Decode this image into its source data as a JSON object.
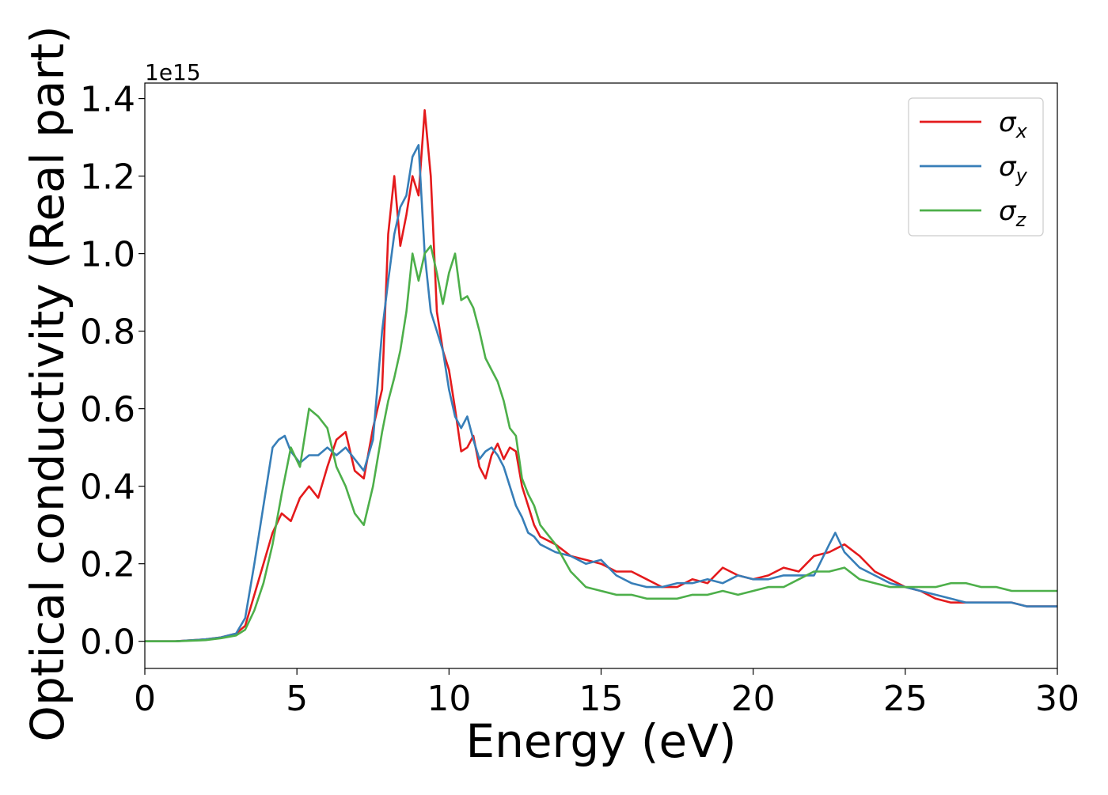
{
  "chart_data": {
    "type": "line",
    "xlabel": "Energy (eV)",
    "ylabel": "Optical conductivity (Real part)",
    "y_offset_text": "1e15",
    "xlim": [
      0,
      30
    ],
    "ylim": [
      -0.07,
      1.44
    ],
    "xticks": [
      0,
      5,
      10,
      15,
      20,
      25,
      30
    ],
    "yticks": [
      0.0,
      0.2,
      0.4,
      0.6,
      0.8,
      1.0,
      1.2,
      1.4
    ],
    "ytick_labels": [
      "0.0",
      "0.2",
      "0.4",
      "0.6",
      "0.8",
      "1.0",
      "1.2",
      "1.4"
    ],
    "xtick_labels": [
      "0",
      "5",
      "10",
      "15",
      "20",
      "25",
      "30"
    ],
    "legend_position": "top-right",
    "grid": false,
    "series": [
      {
        "name": "σx",
        "base": "σ",
        "sub": "x",
        "color": "#e41a1c",
        "x": [
          0,
          1,
          2,
          2.5,
          3,
          3.3,
          3.6,
          3.9,
          4.2,
          4.5,
          4.8,
          5.1,
          5.4,
          5.7,
          6.0,
          6.3,
          6.6,
          6.9,
          7.2,
          7.5,
          7.8,
          8.0,
          8.2,
          8.4,
          8.6,
          8.8,
          9.0,
          9.2,
          9.4,
          9.6,
          9.8,
          10.0,
          10.2,
          10.4,
          10.6,
          10.8,
          11.0,
          11.2,
          11.4,
          11.6,
          11.8,
          12.0,
          12.2,
          12.4,
          12.6,
          12.8,
          13.0,
          13.5,
          14.0,
          14.5,
          15.0,
          15.5,
          16.0,
          16.5,
          17.0,
          17.5,
          18.0,
          18.5,
          19.0,
          19.5,
          20.0,
          20.5,
          21.0,
          21.5,
          22.0,
          22.5,
          23.0,
          23.5,
          24.0,
          24.5,
          25.0,
          25.5,
          26.0,
          26.5,
          27.0,
          27.5,
          28.0,
          28.5,
          29.0,
          29.5,
          30.0
        ],
        "y": [
          0.0,
          0.0,
          0.005,
          0.01,
          0.02,
          0.04,
          0.12,
          0.2,
          0.28,
          0.33,
          0.31,
          0.37,
          0.4,
          0.37,
          0.45,
          0.52,
          0.54,
          0.44,
          0.42,
          0.55,
          0.65,
          1.05,
          1.2,
          1.02,
          1.1,
          1.2,
          1.15,
          1.37,
          1.2,
          0.85,
          0.75,
          0.7,
          0.6,
          0.49,
          0.5,
          0.53,
          0.45,
          0.42,
          0.48,
          0.51,
          0.47,
          0.5,
          0.49,
          0.4,
          0.35,
          0.3,
          0.27,
          0.25,
          0.22,
          0.21,
          0.2,
          0.18,
          0.18,
          0.16,
          0.14,
          0.14,
          0.16,
          0.15,
          0.19,
          0.17,
          0.16,
          0.17,
          0.19,
          0.18,
          0.22,
          0.23,
          0.25,
          0.22,
          0.18,
          0.16,
          0.14,
          0.13,
          0.11,
          0.1,
          0.1,
          0.1,
          0.1,
          0.1,
          0.09,
          0.09,
          0.09
        ]
      },
      {
        "name": "σy",
        "base": "σ",
        "sub": "y",
        "color": "#377eb8",
        "x": [
          0,
          1,
          2,
          2.5,
          3,
          3.3,
          3.6,
          3.9,
          4.2,
          4.4,
          4.6,
          4.8,
          5.1,
          5.4,
          5.7,
          6.0,
          6.3,
          6.6,
          6.9,
          7.2,
          7.5,
          7.8,
          8.0,
          8.2,
          8.4,
          8.6,
          8.8,
          9.0,
          9.2,
          9.4,
          9.6,
          9.8,
          10.0,
          10.2,
          10.4,
          10.6,
          10.8,
          11.0,
          11.2,
          11.4,
          11.6,
          11.8,
          12.0,
          12.2,
          12.4,
          12.6,
          12.8,
          13.0,
          13.5,
          14.0,
          14.5,
          15.0,
          15.5,
          16.0,
          16.5,
          17.0,
          17.5,
          18.0,
          18.5,
          19.0,
          19.5,
          20.0,
          20.5,
          21.0,
          21.5,
          22.0,
          22.5,
          22.7,
          23.0,
          23.5,
          24.0,
          24.5,
          25.0,
          25.5,
          26.0,
          26.5,
          27.0,
          27.5,
          28.0,
          28.5,
          29.0,
          29.5,
          30.0
        ],
        "y": [
          0.0,
          0.0,
          0.005,
          0.01,
          0.02,
          0.06,
          0.2,
          0.35,
          0.5,
          0.52,
          0.53,
          0.49,
          0.46,
          0.48,
          0.48,
          0.5,
          0.48,
          0.5,
          0.47,
          0.44,
          0.52,
          0.8,
          0.93,
          1.05,
          1.12,
          1.15,
          1.25,
          1.28,
          1.0,
          0.85,
          0.8,
          0.75,
          0.65,
          0.58,
          0.55,
          0.58,
          0.52,
          0.47,
          0.49,
          0.5,
          0.48,
          0.45,
          0.4,
          0.35,
          0.32,
          0.28,
          0.27,
          0.25,
          0.23,
          0.22,
          0.2,
          0.21,
          0.17,
          0.15,
          0.14,
          0.14,
          0.15,
          0.15,
          0.16,
          0.15,
          0.17,
          0.16,
          0.16,
          0.17,
          0.17,
          0.17,
          0.25,
          0.28,
          0.23,
          0.19,
          0.17,
          0.15,
          0.14,
          0.13,
          0.12,
          0.11,
          0.1,
          0.1,
          0.1,
          0.1,
          0.09,
          0.09,
          0.09
        ]
      },
      {
        "name": "σz",
        "base": "σ",
        "sub": "z",
        "color": "#4daf4a",
        "x": [
          0,
          1,
          2,
          2.5,
          3,
          3.3,
          3.6,
          3.9,
          4.2,
          4.5,
          4.8,
          5.1,
          5.4,
          5.7,
          6.0,
          6.3,
          6.6,
          6.9,
          7.2,
          7.5,
          7.8,
          8.0,
          8.2,
          8.4,
          8.6,
          8.8,
          9.0,
          9.2,
          9.4,
          9.6,
          9.8,
          10.0,
          10.2,
          10.4,
          10.6,
          10.8,
          11.0,
          11.2,
          11.4,
          11.6,
          11.8,
          12.0,
          12.2,
          12.4,
          12.6,
          12.8,
          13.0,
          13.5,
          14.0,
          14.5,
          15.0,
          15.5,
          16.0,
          16.5,
          17.0,
          17.5,
          18.0,
          18.5,
          19.0,
          19.5,
          20.0,
          20.5,
          21.0,
          21.5,
          22.0,
          22.5,
          23.0,
          23.5,
          24.0,
          24.5,
          25.0,
          25.5,
          26.0,
          26.5,
          27.0,
          27.5,
          28.0,
          28.5,
          29.0,
          29.5,
          30.0
        ],
        "y": [
          0.0,
          0.0,
          0.003,
          0.008,
          0.015,
          0.03,
          0.08,
          0.15,
          0.25,
          0.38,
          0.5,
          0.45,
          0.6,
          0.58,
          0.55,
          0.45,
          0.4,
          0.33,
          0.3,
          0.4,
          0.54,
          0.62,
          0.68,
          0.75,
          0.85,
          1.0,
          0.93,
          1.0,
          1.02,
          0.95,
          0.87,
          0.95,
          1.0,
          0.88,
          0.89,
          0.86,
          0.8,
          0.73,
          0.7,
          0.67,
          0.62,
          0.55,
          0.53,
          0.42,
          0.38,
          0.35,
          0.3,
          0.25,
          0.18,
          0.14,
          0.13,
          0.12,
          0.12,
          0.11,
          0.11,
          0.11,
          0.12,
          0.12,
          0.13,
          0.12,
          0.13,
          0.14,
          0.14,
          0.16,
          0.18,
          0.18,
          0.19,
          0.16,
          0.15,
          0.14,
          0.14,
          0.14,
          0.14,
          0.15,
          0.15,
          0.14,
          0.14,
          0.13,
          0.13,
          0.13,
          0.13
        ]
      }
    ]
  }
}
